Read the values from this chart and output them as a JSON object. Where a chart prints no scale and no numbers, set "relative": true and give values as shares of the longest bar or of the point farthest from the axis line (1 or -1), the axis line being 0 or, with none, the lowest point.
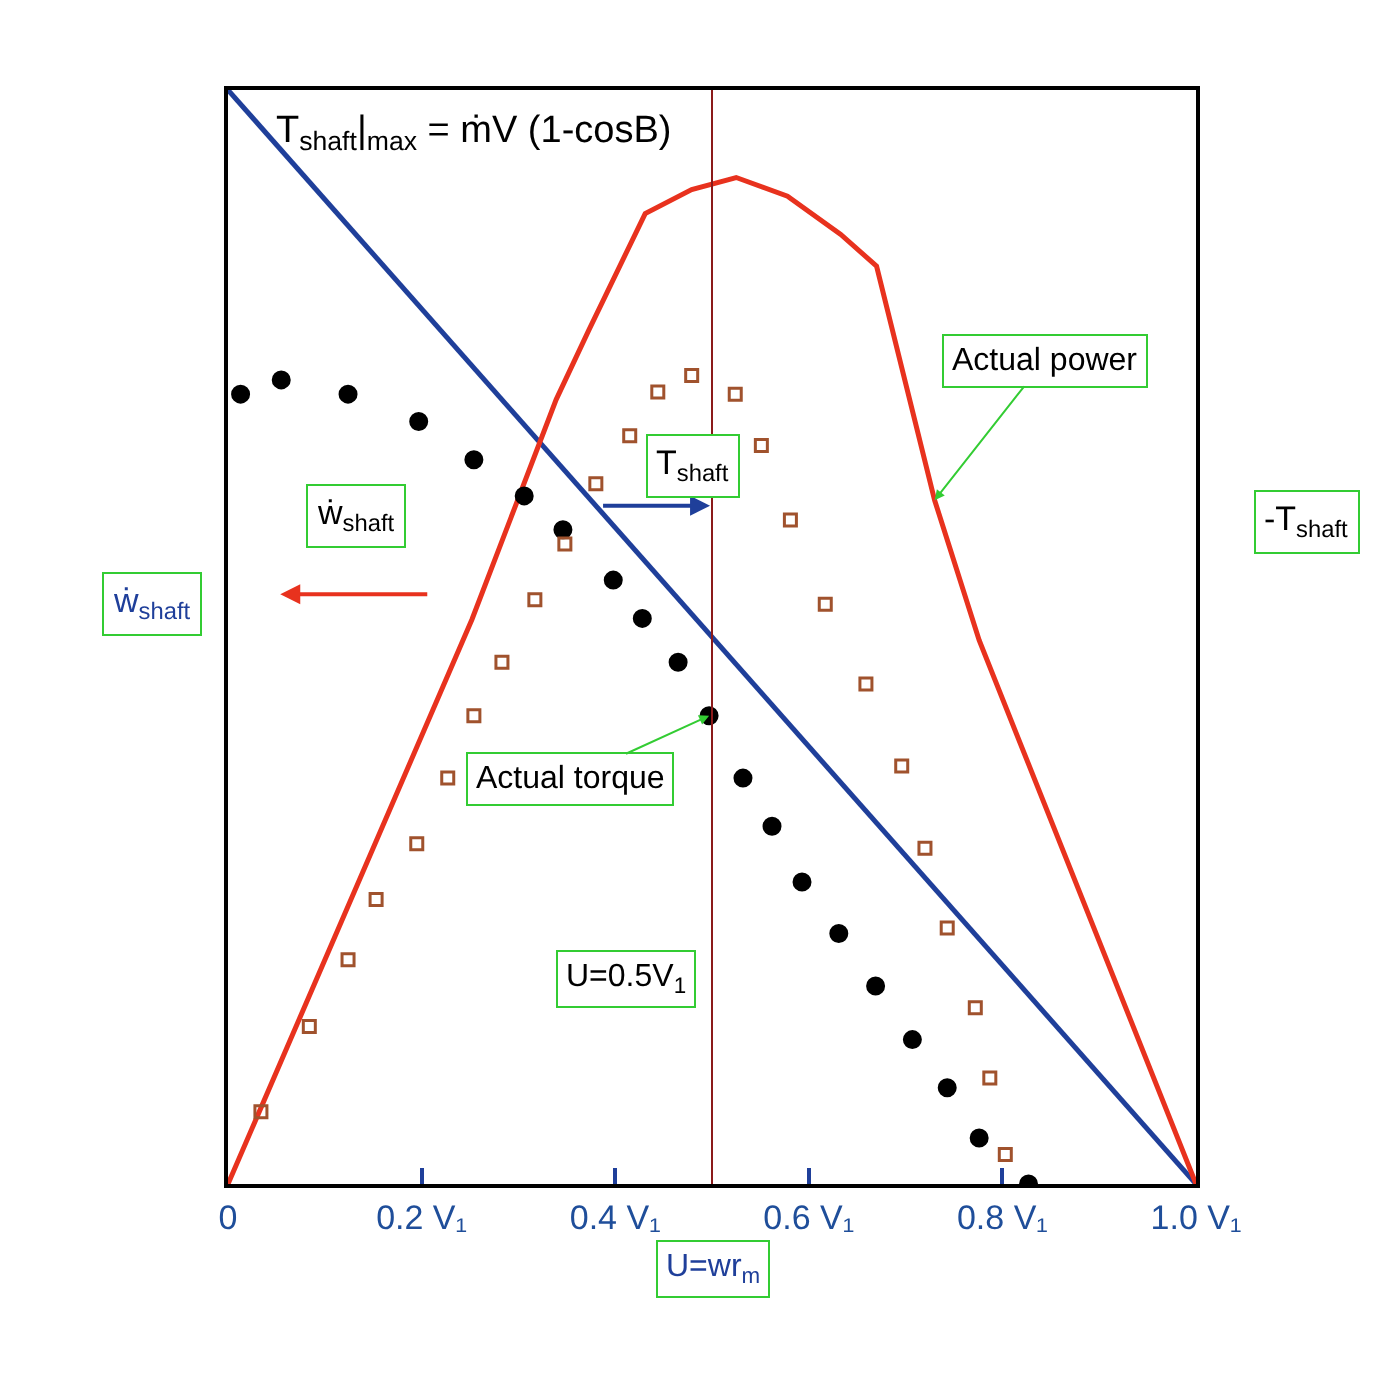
{
  "chart_data": {
    "type": "line",
    "relative": true,
    "xlabel": "U=wr$_{m}$",
    "ylabel": "ẇ$_{shaft}$",
    "y2label": "-T$_{shaft}$",
    "xlim": [
      0,
      1.0
    ],
    "xticks": [
      {
        "value": 0,
        "label": "0"
      },
      {
        "value": 0.2,
        "label": "0.2 V₁"
      },
      {
        "value": 0.4,
        "label": "0.4 V₁"
      },
      {
        "value": 0.6,
        "label": "0.6 V₁"
      },
      {
        "value": 0.8,
        "label": "0.8 V₁"
      },
      {
        "value": 1.0,
        "label": "1.0 V₁"
      }
    ],
    "series": [
      {
        "color": "#1f3f9a",
        "marker": "none",
        "x": [
          0,
          1.0
        ],
        "values": [
          1.0,
          0
        ]
      },
      {
        "color": "#e8321e",
        "marker": "none",
        "x": [
          0,
          0.252,
          0.339,
          0.373,
          0.431,
          0.479,
          0.525,
          0.578,
          0.633,
          0.67,
          0.73,
          0.776,
          1.0
        ],
        "values": [
          0,
          0.516,
          0.717,
          0.781,
          0.887,
          0.909,
          0.92,
          0.903,
          0.868,
          0.839,
          0.625,
          0.497,
          0
        ]
      },
      {
        "type": "scatter",
        "color": "#000000",
        "marker": "circle",
        "x": [
          0.013,
          0.055,
          0.124,
          0.197,
          0.254,
          0.306,
          0.346,
          0.398,
          0.428,
          0.465,
          0.497,
          0.532,
          0.562,
          0.593,
          0.631,
          0.669,
          0.707,
          0.743,
          0.776,
          0.827
        ],
        "values": [
          0.722,
          0.735,
          0.722,
          0.697,
          0.662,
          0.629,
          0.598,
          0.552,
          0.517,
          0.477,
          0.428,
          0.371,
          0.327,
          0.276,
          0.229,
          0.181,
          0.132,
          0.088,
          0.042,
          0
        ]
      },
      {
        "type": "scatter",
        "color": "#a0522d",
        "marker": "square",
        "x": [
          0.034,
          0.084,
          0.124,
          0.153,
          0.195,
          0.227,
          0.254,
          0.283,
          0.317,
          0.348,
          0.38,
          0.415,
          0.444,
          0.479,
          0.524,
          0.551,
          0.581,
          0.617,
          0.659,
          0.696,
          0.72,
          0.743,
          0.772,
          0.787,
          0.803
        ],
        "values": [
          0.066,
          0.144,
          0.205,
          0.26,
          0.311,
          0.371,
          0.428,
          0.477,
          0.534,
          0.585,
          0.64,
          0.684,
          0.724,
          0.739,
          0.722,
          0.675,
          0.607,
          0.53,
          0.457,
          0.382,
          0.307,
          0.234,
          0.161,
          0.097,
          0.027
        ]
      }
    ],
    "ref_lines": [
      {
        "axis": "x",
        "value": 0.5,
        "label": "U=0.5V$_{1}$",
        "color": "#8b1a1a"
      }
    ],
    "annotations": [
      {
        "text": "T$_{shaft}$|$_{max}$ = ṁV (1-cosB)",
        "x": 0,
        "y": 1.0
      },
      {
        "text": "Actual power",
        "x": 0.73,
        "y": 0.625
      },
      {
        "text": "Actual torque",
        "x": 0.497,
        "y": 0.428
      },
      "T$_{shaft}$",
      "ẇ$_{shaft}$"
    ]
  }
}
